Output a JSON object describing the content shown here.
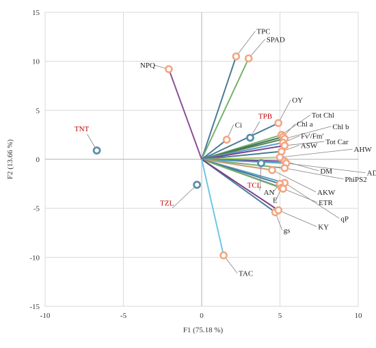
{
  "chart_data": {
    "type": "scatter",
    "title": "",
    "xlabel": "F1 (75.18 %)",
    "ylabel": "F2 (13.66 %)",
    "xlim": [
      -10,
      10
    ],
    "ylim": [
      -15,
      15
    ],
    "xticks": [
      "-10",
      "-5",
      "0",
      "5",
      "10"
    ],
    "yticks": [
      "15",
      "10",
      "5",
      "0",
      "-5",
      "-10",
      "-15"
    ],
    "grid": true,
    "legend": "none",
    "variables": [
      {
        "name": "TPC",
        "x": 2.2,
        "y": 10.5,
        "color": "#4a7b96"
      },
      {
        "name": "SPAD",
        "x": 3.0,
        "y": 10.3,
        "color": "#73b26a"
      },
      {
        "name": "NPQ",
        "x": -2.1,
        "y": 9.2,
        "color": "#8b4f96"
      },
      {
        "name": "OY",
        "x": 4.9,
        "y": 3.7,
        "color": "#4a7b96"
      },
      {
        "name": "Tot Chl",
        "x": 5.1,
        "y": 2.5,
        "color": "#73b26a"
      },
      {
        "name": "Chl a",
        "x": 5.2,
        "y": 2.3,
        "color": "#3f6f5a"
      },
      {
        "name": "Chl b",
        "x": 5.3,
        "y": 2.1,
        "color": "#56864e"
      },
      {
        "name": "Ci",
        "x": 1.6,
        "y": 2.0,
        "color": "#4a7b96"
      },
      {
        "name": "Fv'/Fm'",
        "x": 5.2,
        "y": 1.7,
        "color": "#5a9fd6"
      },
      {
        "name": "Tot Car",
        "x": 5.3,
        "y": 1.4,
        "color": "#7b3f8a"
      },
      {
        "name": "ASW",
        "x": 5.1,
        "y": 0.8,
        "color": "#4a7b96"
      },
      {
        "name": "AHW",
        "x": 5.0,
        "y": 0.2,
        "color": "#a9cf6a"
      },
      {
        "name": "DM",
        "x": 5.3,
        "y": -0.2,
        "color": "#6a3f8f"
      },
      {
        "name": "ADW",
        "x": 5.4,
        "y": -0.4,
        "color": "#4fa0c8"
      },
      {
        "name": "PhiPS2",
        "x": 5.3,
        "y": -0.9,
        "color": "#73b26a"
      },
      {
        "name": "AKW",
        "x": 4.5,
        "y": -1.1,
        "color": "#d09a7a"
      },
      {
        "name": "qP",
        "x": 5.3,
        "y": -2.4,
        "color": "#4fa0c8"
      },
      {
        "name": "AN",
        "x": 5.0,
        "y": -2.5,
        "color": "#4a7b96"
      },
      {
        "name": "E",
        "x": 5.1,
        "y": -2.9,
        "color": "#6a3f8f"
      },
      {
        "name": "ETR",
        "x": 5.2,
        "y": -3.0,
        "color": "#73b26a"
      },
      {
        "name": "gs",
        "x": 4.7,
        "y": -5.4,
        "color": "#4a7b96"
      },
      {
        "name": "KY",
        "x": 4.9,
        "y": -5.2,
        "color": "#7b3f8a"
      },
      {
        "name": "TAC",
        "x": 1.4,
        "y": -9.8,
        "color": "#6fc6e6"
      }
    ],
    "observations": [
      {
        "name": "TNT",
        "x": -6.7,
        "y": 0.9
      },
      {
        "name": "TPB",
        "x": 3.1,
        "y": 2.2
      },
      {
        "name": "TCL",
        "x": 3.8,
        "y": -0.4
      },
      {
        "name": "TZL",
        "x": -0.3,
        "y": -2.6
      }
    ],
    "colors": {
      "variable_marker": "#f4a582",
      "observation_marker": "#5b8fa8",
      "observation_label": "#c00000",
      "grid": "#d9d9d9",
      "axis": "#bfbfbf",
      "leader": "#7f7f7f"
    }
  }
}
